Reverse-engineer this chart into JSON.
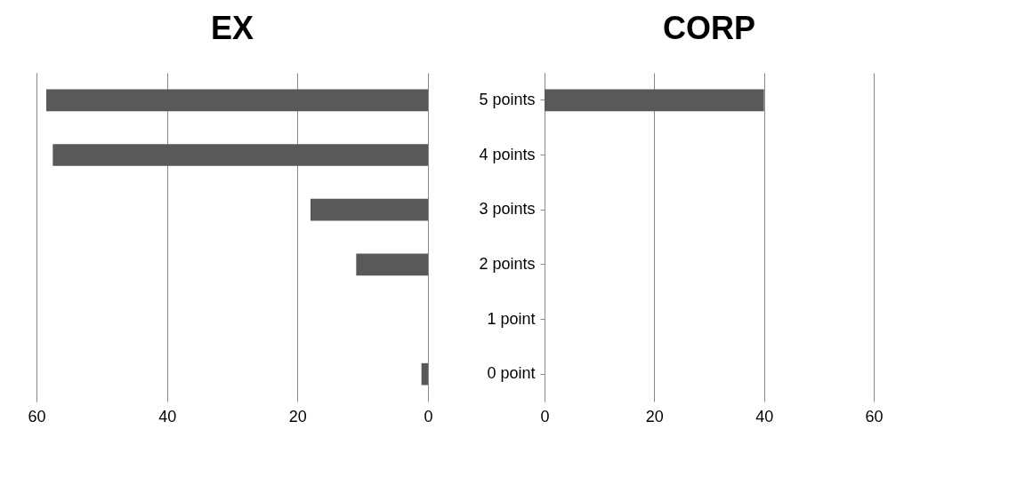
{
  "chart_data": [
    {
      "type": "bar",
      "title": "EX",
      "orientation": "horizontal",
      "categories": [
        null,
        null,
        null,
        null,
        null,
        null
      ],
      "values": [
        58.5,
        57.5,
        18,
        11,
        0,
        1
      ],
      "color": "#595959",
      "xlim": [
        60,
        0
      ],
      "xticks": [
        60,
        40,
        20,
        0
      ],
      "grid": "x",
      "tick_labels": "x"
    },
    {
      "type": "bar",
      "title": "CORP",
      "orientation": "horizontal",
      "categories": [
        "5 points",
        "4 points",
        "3 points",
        "2 points",
        "1 point",
        "0 point"
      ],
      "values": [
        40,
        0,
        0,
        0,
        0,
        0
      ],
      "color": "#595959",
      "xlim": [
        0,
        60
      ],
      "xticks": [
        0,
        20,
        40,
        60
      ],
      "grid": "x"
    }
  ]
}
